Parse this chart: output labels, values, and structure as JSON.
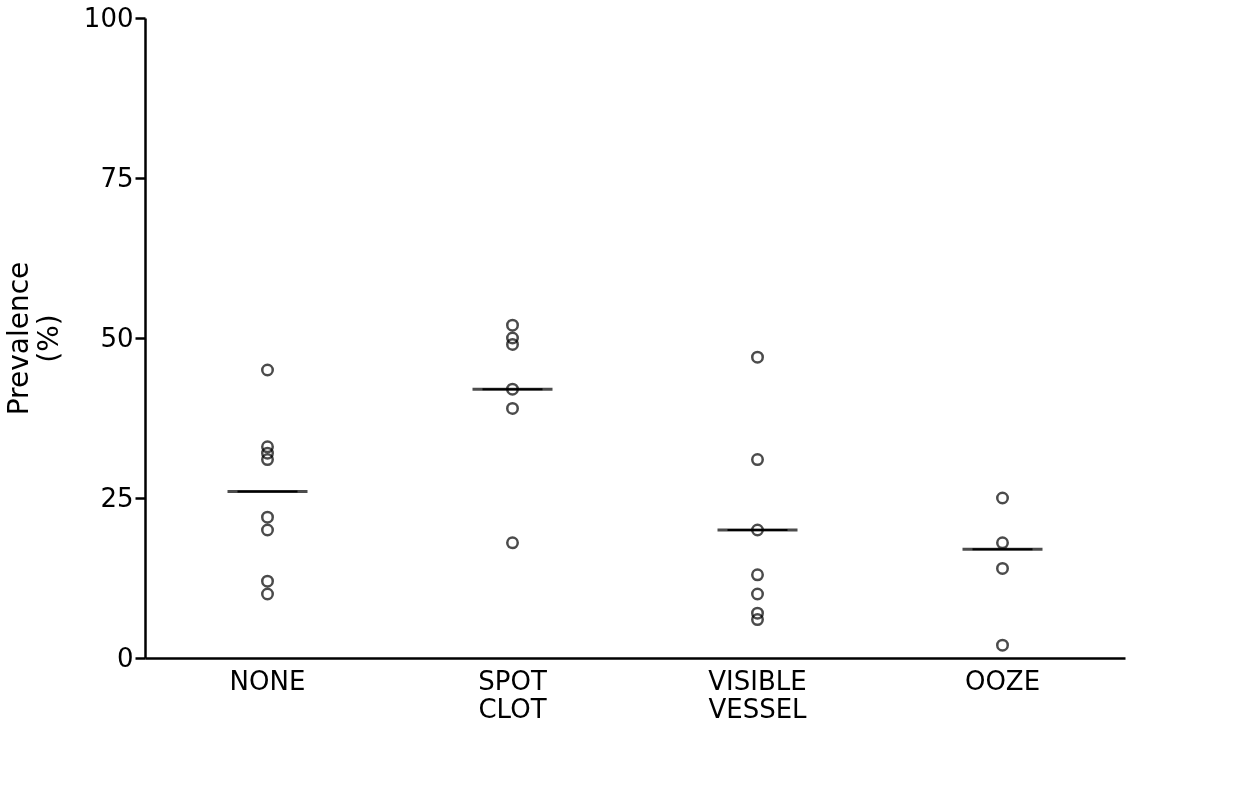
{
  "chart_data": {
    "type": "scatter",
    "ylabel": "Prevalence\n(%)",
    "categories": [
      "NONE",
      "SPOT\nCLOT",
      "VISIBLE\nVESSEL",
      "OOZE"
    ],
    "series": [
      {
        "marker": "circle",
        "color": "#000000",
        "x": [
          "NONE",
          "NONE",
          "NONE",
          "NONE",
          "NONE",
          "NONE",
          "NONE",
          "NONE",
          "SPOT\nCLOT",
          "SPOT\nCLOT",
          "SPOT\nCLOT",
          "SPOT\nCLOT",
          "SPOT\nCLOT",
          "SPOT\nCLOT",
          "VISIBLE\nVESSEL",
          "VISIBLE\nVESSEL",
          "VISIBLE\nVESSEL",
          "VISIBLE\nVESSEL",
          "VISIBLE\nVESSEL",
          "VISIBLE\nVESSEL",
          "VISIBLE\nVESSEL",
          "OOZE",
          "OOZE",
          "OOZE",
          "OOZE"
        ],
        "values": [
          45,
          33,
          32,
          31,
          22,
          20,
          12,
          10,
          52,
          50,
          49,
          42,
          39,
          18,
          47,
          31,
          20,
          13,
          10,
          7,
          6,
          25,
          18,
          14,
          2
        ]
      },
      {
        "type": "box",
        "color": "#000000",
        "boxes": [
          {
            "low": 26,
            "q1": 26,
            "median": 26,
            "q3": 26,
            "high": 26
          },
          {
            "low": 42,
            "q1": 42,
            "median": 42,
            "q3": 42,
            "high": 42
          },
          {
            "low": 20,
            "q1": 20,
            "median": 20,
            "q3": 20,
            "high": 20
          },
          {
            "low": 17,
            "q1": 17,
            "median": 17,
            "q3": 17,
            "high": 17
          }
        ]
      }
    ],
    "ylim": [
      0,
      100
    ],
    "yticks": [
      0,
      25,
      50,
      75,
      100
    ],
    "grid": false
  }
}
